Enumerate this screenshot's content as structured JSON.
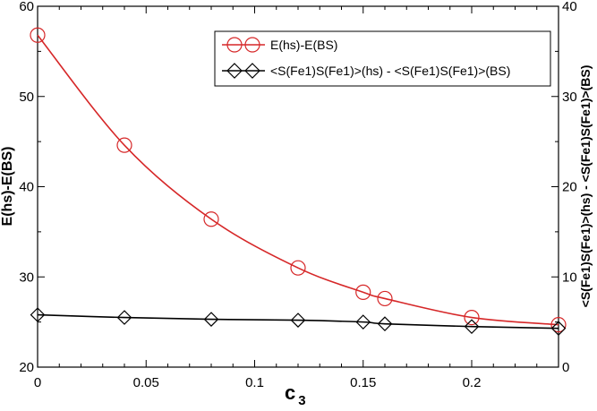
{
  "chart_data": {
    "type": "line",
    "xlabel_main": "c",
    "xlabel_sub": "3",
    "ylabel_left": "E(hs)-E(BS)",
    "ylabel_right": "<S(Fe1)S(Fe1)>(hs) - <S(Fe1)S(Fe1)>(BS)",
    "xlim": [
      0,
      0.24
    ],
    "ylim_left": [
      20,
      60
    ],
    "ylim_right": [
      0,
      40
    ],
    "x_ticks": [
      "0",
      "0.05",
      "0.1",
      "0.15",
      "0.2"
    ],
    "x_tick_values": [
      0,
      0.05,
      0.1,
      0.15,
      0.2
    ],
    "y_left_ticks": [
      "20",
      "30",
      "40",
      "50",
      "60"
    ],
    "y_left_tick_values": [
      20,
      30,
      40,
      50,
      60
    ],
    "y_right_ticks": [
      "0",
      "10",
      "20",
      "30",
      "40"
    ],
    "y_right_tick_values": [
      0,
      10,
      20,
      30,
      40
    ],
    "grid": false,
    "legend_position": "top-right",
    "series": [
      {
        "name": "E(hs)-E(BS)",
        "axis": "left",
        "color": "#d62728",
        "marker": "circle",
        "x": [
          0,
          0.04,
          0.08,
          0.12,
          0.15,
          0.16,
          0.2,
          0.24
        ],
        "y": [
          56.8,
          44.6,
          36.4,
          31.0,
          28.3,
          27.6,
          25.5,
          24.7
        ]
      },
      {
        "name": "<S(Fe1)S(Fe1)>(hs) - <S(Fe1)S(Fe1)>(BS)",
        "axis": "right",
        "color": "#000000",
        "marker": "diamond",
        "x": [
          0,
          0.04,
          0.08,
          0.12,
          0.15,
          0.16,
          0.2,
          0.24
        ],
        "y": [
          5.8,
          5.5,
          5.3,
          5.2,
          5.0,
          4.8,
          4.5,
          4.3
        ]
      }
    ]
  }
}
